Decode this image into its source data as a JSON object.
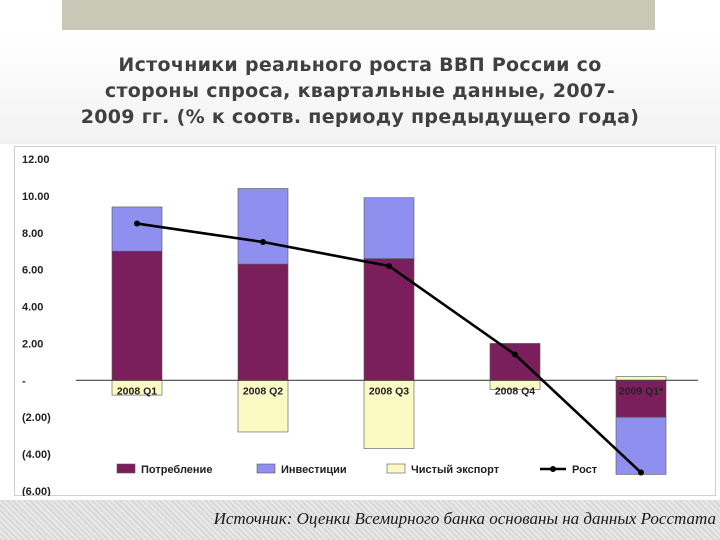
{
  "title": "Источники реального роста ВВП России со стороны спроса, квартальные данные, 2007-2009 гг. (% к соотв. периоду предыдущего года)",
  "source": "Источник: Оценки Всемирного банка основаны на данных Росстата",
  "colors": {
    "consumption": "#7b1f5c",
    "investment": "#8f8ff0",
    "net_export": "#fbf9c4",
    "growth": "#000000"
  },
  "chart_data": {
    "type": "bar",
    "stacked": true,
    "categories": [
      "2008 Q1",
      "2008 Q2",
      "2008 Q3",
      "2008 Q4",
      "2009 Q1*"
    ],
    "series": [
      {
        "name": "Потребление",
        "type": "bar",
        "values": [
          7.0,
          6.3,
          6.6,
          2.0,
          -2.0
        ]
      },
      {
        "name": "Инвестиции",
        "type": "bar",
        "values": [
          2.4,
          4.1,
          3.3,
          0.0,
          -3.1
        ]
      },
      {
        "name": "Чистый экспорт",
        "type": "bar",
        "values": [
          -0.8,
          -2.8,
          -3.7,
          -0.5,
          0.2
        ]
      },
      {
        "name": "Рост",
        "type": "line",
        "values": [
          8.5,
          7.5,
          6.2,
          1.4,
          -5.0
        ]
      }
    ],
    "yticks": [
      "12.00",
      "10.00",
      "8.00",
      "6.00",
      "4.00",
      "2.00",
      "-",
      "(2.00)",
      "(4.00)",
      "(6.00)"
    ],
    "ylim": [
      -6,
      12
    ],
    "legend": "bottom"
  }
}
